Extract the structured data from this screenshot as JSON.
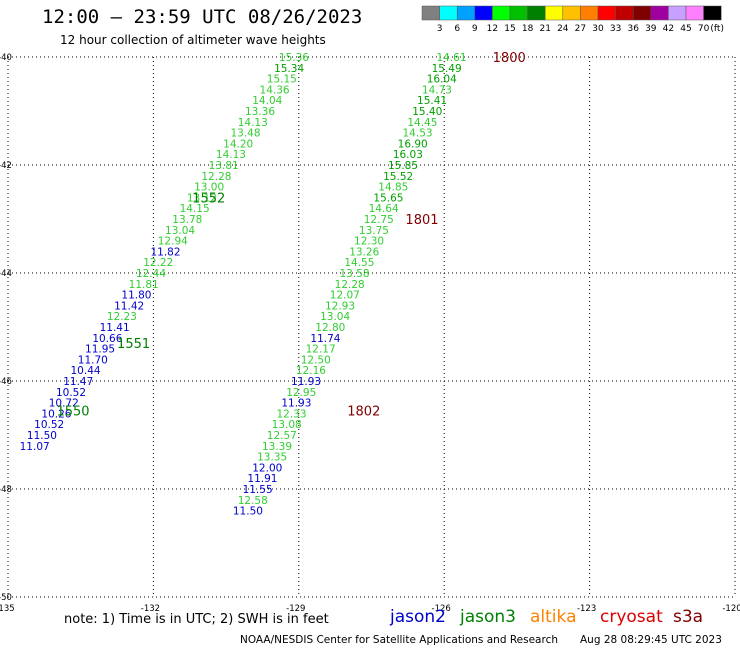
{
  "header": {
    "title": "12:00 – 23:59 UTC 08/26/2023",
    "subtitle": "12 hour collection of altimeter wave heights"
  },
  "colorbar": {
    "labels": [
      "3",
      "6",
      "9",
      "12",
      "15",
      "18",
      "21",
      "24",
      "27",
      "30",
      "33",
      "36",
      "39",
      "42",
      "45",
      "70"
    ],
    "unit": "(ft)",
    "colors": [
      "#808080",
      "#00ffff",
      "#00a0ff",
      "#0000ff",
      "#00ff00",
      "#00c000",
      "#008000",
      "#ffff00",
      "#ffc000",
      "#ff8000",
      "#ff0000",
      "#c00000",
      "#800000",
      "#a000a0",
      "#c8a0ff",
      "#ff80ff",
      "#000000"
    ]
  },
  "footer": {
    "note": "note:  1) Time is in UTC;  2) SWH is in feet",
    "satellites": [
      {
        "name": "jason2",
        "color": "#0000cc"
      },
      {
        "name": "jason3",
        "color": "#008000"
      },
      {
        "name": "altika",
        "color": "#ff8000"
      },
      {
        "name": "cryosat",
        "color": "#dd0000"
      },
      {
        "name": "s3a",
        "color": "#800000"
      }
    ],
    "credit": "NOAA/NESDIS Center for Satellite Applications and Research",
    "timestamp": "Aug 28 08:29:45 UTC 2023"
  },
  "chart_data": {
    "type": "scatter",
    "title": "12:00 – 23:59 UTC 08/26/2023",
    "subtitle": "12 hour collection of altimeter wave heights",
    "xlabel": "",
    "ylabel": "",
    "xlim": [
      -135,
      -120
    ],
    "ylim": [
      -50,
      -40
    ],
    "x_ticks": [
      "-135",
      "-132",
      "-129",
      "-126",
      "-123",
      "-120"
    ],
    "y_ticks": [
      "-40",
      "-42",
      "-44",
      "-46",
      "-48",
      "-50"
    ],
    "grid": true,
    "time_labels": [
      {
        "text": "1800",
        "x": -125.0,
        "y": -40.0,
        "color": "#800000"
      },
      {
        "text": "1801",
        "x": -126.8,
        "y": -43.0,
        "color": "#800000"
      },
      {
        "text": "1802",
        "x": -128.0,
        "y": -46.55,
        "color": "#800000"
      },
      {
        "text": "1550",
        "x": -134.0,
        "y": -46.55,
        "color": "#008000"
      },
      {
        "text": "1551",
        "x": -132.75,
        "y": -45.3,
        "color": "#008000"
      },
      {
        "text": "1552",
        "x": -131.2,
        "y": -42.6,
        "color": "#008000"
      }
    ],
    "series": [
      {
        "name": "",
        "points": [
          {
            "x": -129.1,
            "y": -40.0,
            "v": "15.36",
            "c": "#32cd32"
          },
          {
            "x": -129.2,
            "y": -40.2,
            "v": "15.34",
            "c": "#00a000"
          },
          {
            "x": -129.35,
            "y": -40.4,
            "v": "15.15",
            "c": "#32cd32"
          },
          {
            "x": -129.5,
            "y": -40.6,
            "v": "14.36",
            "c": "#32cd32"
          },
          {
            "x": -129.65,
            "y": -40.8,
            "v": "14.04",
            "c": "#32cd32"
          },
          {
            "x": -129.8,
            "y": -41.0,
            "v": "13.36",
            "c": "#32cd32"
          },
          {
            "x": -129.95,
            "y": -41.2,
            "v": "14.13",
            "c": "#32cd32"
          },
          {
            "x": -130.1,
            "y": -41.4,
            "v": "13.48",
            "c": "#32cd32"
          },
          {
            "x": -130.25,
            "y": -41.6,
            "v": "14.20",
            "c": "#32cd32"
          },
          {
            "x": -130.4,
            "y": -41.8,
            "v": "14.13",
            "c": "#32cd32"
          },
          {
            "x": -130.55,
            "y": -42.0,
            "v": "13.81",
            "c": "#32cd32"
          },
          {
            "x": -130.7,
            "y": -42.2,
            "v": "12.28",
            "c": "#32cd32"
          },
          {
            "x": -130.85,
            "y": -42.4,
            "v": "13.00",
            "c": "#32cd32"
          },
          {
            "x": -131.0,
            "y": -42.6,
            "v": "13.12",
            "c": "#32cd32"
          },
          {
            "x": -131.15,
            "y": -42.8,
            "v": "14.15",
            "c": "#32cd32"
          },
          {
            "x": -131.3,
            "y": -43.0,
            "v": "13.78",
            "c": "#32cd32"
          },
          {
            "x": -131.45,
            "y": -43.2,
            "v": "13.04",
            "c": "#32cd32"
          },
          {
            "x": -131.6,
            "y": -43.4,
            "v": "12.94",
            "c": "#32cd32"
          },
          {
            "x": -131.75,
            "y": -43.6,
            "v": "11.82",
            "c": "#0000cc"
          },
          {
            "x": -131.9,
            "y": -43.8,
            "v": "12.22",
            "c": "#32cd32"
          },
          {
            "x": -132.05,
            "y": -44.0,
            "v": "12.44",
            "c": "#32cd32"
          },
          {
            "x": -132.2,
            "y": -44.2,
            "v": "11.81",
            "c": "#32cd32"
          },
          {
            "x": -132.35,
            "y": -44.4,
            "v": "11.80",
            "c": "#0000cc"
          },
          {
            "x": -132.5,
            "y": -44.6,
            "v": "11.42",
            "c": "#0000cc"
          },
          {
            "x": -132.65,
            "y": -44.8,
            "v": "12.23",
            "c": "#32cd32"
          },
          {
            "x": -132.8,
            "y": -45.0,
            "v": "11.41",
            "c": "#0000cc"
          },
          {
            "x": -132.95,
            "y": -45.2,
            "v": "10.66",
            "c": "#0000cc"
          },
          {
            "x": -133.1,
            "y": -45.4,
            "v": "11.95",
            "c": "#0000cc"
          },
          {
            "x": -133.25,
            "y": -45.6,
            "v": "11.70",
            "c": "#0000cc"
          },
          {
            "x": -133.4,
            "y": -45.8,
            "v": "10.44",
            "c": "#0000cc"
          },
          {
            "x": -133.55,
            "y": -46.0,
            "v": "11.47",
            "c": "#0000cc"
          },
          {
            "x": -133.7,
            "y": -46.2,
            "v": "10.52",
            "c": "#0000cc"
          },
          {
            "x": -133.85,
            "y": -46.4,
            "v": "10.72",
            "c": "#0000cc"
          },
          {
            "x": -134.0,
            "y": -46.6,
            "v": "10.26",
            "c": "#0000cc"
          },
          {
            "x": -134.15,
            "y": -46.8,
            "v": "10.52",
            "c": "#0000cc"
          },
          {
            "x": -134.3,
            "y": -47.0,
            "v": "11.50",
            "c": "#0000cc"
          },
          {
            "x": -134.45,
            "y": -47.2,
            "v": "11.07",
            "c": "#0000cc"
          }
        ]
      },
      {
        "name": "",
        "points": [
          {
            "x": -125.85,
            "y": -40.0,
            "v": "14.61",
            "c": "#32cd32"
          },
          {
            "x": -125.95,
            "y": -40.2,
            "v": "15.49",
            "c": "#00a000"
          },
          {
            "x": -126.05,
            "y": -40.4,
            "v": "16.04",
            "c": "#00a000"
          },
          {
            "x": -126.15,
            "y": -40.6,
            "v": "14.73",
            "c": "#32cd32"
          },
          {
            "x": -126.25,
            "y": -40.8,
            "v": "15.41",
            "c": "#00a000"
          },
          {
            "x": -126.35,
            "y": -41.0,
            "v": "15.40",
            "c": "#00a000"
          },
          {
            "x": -126.45,
            "y": -41.2,
            "v": "14.45",
            "c": "#32cd32"
          },
          {
            "x": -126.55,
            "y": -41.4,
            "v": "14.53",
            "c": "#32cd32"
          },
          {
            "x": -126.65,
            "y": -41.6,
            "v": "16.90",
            "c": "#00a000"
          },
          {
            "x": -126.75,
            "y": -41.8,
            "v": "16.03",
            "c": "#00a000"
          },
          {
            "x": -126.85,
            "y": -42.0,
            "v": "15.85",
            "c": "#00a000"
          },
          {
            "x": -126.95,
            "y": -42.2,
            "v": "15.52",
            "c": "#00a000"
          },
          {
            "x": -127.05,
            "y": -42.4,
            "v": "14.85",
            "c": "#32cd32"
          },
          {
            "x": -127.15,
            "y": -42.6,
            "v": "15.65",
            "c": "#00a000"
          },
          {
            "x": -127.25,
            "y": -42.8,
            "v": "14.64",
            "c": "#32cd32"
          },
          {
            "x": -127.35,
            "y": -43.0,
            "v": "12.75",
            "c": "#32cd32"
          },
          {
            "x": -127.45,
            "y": -43.2,
            "v": "13.75",
            "c": "#32cd32"
          },
          {
            "x": -127.55,
            "y": -43.4,
            "v": "12.30",
            "c": "#32cd32"
          },
          {
            "x": -127.65,
            "y": -43.6,
            "v": "13.26",
            "c": "#32cd32"
          },
          {
            "x": -127.75,
            "y": -43.8,
            "v": "14.55",
            "c": "#32cd32"
          },
          {
            "x": -127.85,
            "y": -44.0,
            "v": "13.58",
            "c": "#32cd32"
          },
          {
            "x": -127.95,
            "y": -44.2,
            "v": "12.28",
            "c": "#32cd32"
          },
          {
            "x": -128.05,
            "y": -44.4,
            "v": "12.07",
            "c": "#32cd32"
          },
          {
            "x": -128.15,
            "y": -44.6,
            "v": "12.93",
            "c": "#32cd32"
          },
          {
            "x": -128.25,
            "y": -44.8,
            "v": "13.04",
            "c": "#32cd32"
          },
          {
            "x": -128.35,
            "y": -45.0,
            "v": "12.80",
            "c": "#32cd32"
          },
          {
            "x": -128.45,
            "y": -45.2,
            "v": "11.74",
            "c": "#0000cc"
          },
          {
            "x": -128.55,
            "y": -45.4,
            "v": "12.17",
            "c": "#32cd32"
          },
          {
            "x": -128.65,
            "y": -45.6,
            "v": "12.50",
            "c": "#32cd32"
          },
          {
            "x": -128.75,
            "y": -45.8,
            "v": "12.16",
            "c": "#32cd32"
          },
          {
            "x": -128.85,
            "y": -46.0,
            "v": "11.93",
            "c": "#0000cc"
          },
          {
            "x": -128.95,
            "y": -46.2,
            "v": "12.95",
            "c": "#32cd32"
          },
          {
            "x": -129.05,
            "y": -46.4,
            "v": "11.93",
            "c": "#0000cc"
          },
          {
            "x": -129.15,
            "y": -46.6,
            "v": "12.33",
            "c": "#32cd32"
          },
          {
            "x": -129.25,
            "y": -46.8,
            "v": "13.08",
            "c": "#32cd32"
          },
          {
            "x": -129.35,
            "y": -47.0,
            "v": "12.57",
            "c": "#32cd32"
          },
          {
            "x": -129.45,
            "y": -47.2,
            "v": "13.39",
            "c": "#32cd32"
          },
          {
            "x": -129.55,
            "y": -47.4,
            "v": "13.35",
            "c": "#32cd32"
          },
          {
            "x": -129.65,
            "y": -47.6,
            "v": "12.00",
            "c": "#0000cc"
          },
          {
            "x": -129.75,
            "y": -47.8,
            "v": "11.91",
            "c": "#0000cc"
          },
          {
            "x": -129.85,
            "y": -48.0,
            "v": "11.55",
            "c": "#0000cc"
          },
          {
            "x": -129.95,
            "y": -48.2,
            "v": "12.58",
            "c": "#32cd32"
          },
          {
            "x": -130.05,
            "y": -48.4,
            "v": "11.50",
            "c": "#0000cc"
          }
        ]
      }
    ]
  }
}
